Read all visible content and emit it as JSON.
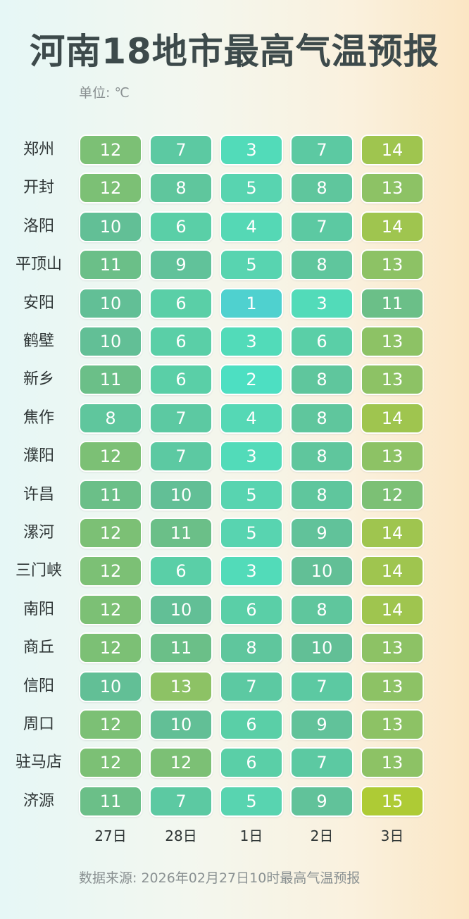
{
  "chart_data": {
    "type": "heatmap",
    "title": "河南18地市最高气温预报",
    "unit_label": "单位: ℃",
    "source": "数据来源: 2026年02月27日10时最高气温预报",
    "columns": [
      "27日",
      "28日",
      "1日",
      "2日",
      "3日"
    ],
    "rows": [
      {
        "city": "郑州",
        "values": [
          12,
          7,
          3,
          7,
          14
        ]
      },
      {
        "city": "开封",
        "values": [
          12,
          8,
          5,
          8,
          13
        ]
      },
      {
        "city": "洛阳",
        "values": [
          10,
          6,
          4,
          7,
          14
        ]
      },
      {
        "city": "平顶山",
        "values": [
          11,
          9,
          5,
          8,
          13
        ]
      },
      {
        "city": "安阳",
        "values": [
          10,
          6,
          1,
          3,
          11
        ]
      },
      {
        "city": "鹤壁",
        "values": [
          10,
          6,
          3,
          6,
          13
        ]
      },
      {
        "city": "新乡",
        "values": [
          11,
          6,
          2,
          8,
          13
        ]
      },
      {
        "city": "焦作",
        "values": [
          8,
          7,
          4,
          8,
          14
        ]
      },
      {
        "city": "濮阳",
        "values": [
          12,
          7,
          3,
          8,
          13
        ]
      },
      {
        "city": "许昌",
        "values": [
          11,
          10,
          5,
          8,
          12
        ]
      },
      {
        "city": "漯河",
        "values": [
          12,
          11,
          5,
          9,
          14
        ]
      },
      {
        "city": "三门峡",
        "values": [
          12,
          6,
          3,
          10,
          14
        ]
      },
      {
        "city": "南阳",
        "values": [
          12,
          10,
          6,
          8,
          14
        ]
      },
      {
        "city": "商丘",
        "values": [
          12,
          11,
          8,
          10,
          13
        ]
      },
      {
        "city": "信阳",
        "values": [
          10,
          13,
          7,
          7,
          13
        ]
      },
      {
        "city": "周口",
        "values": [
          12,
          10,
          6,
          9,
          13
        ]
      },
      {
        "city": "驻马店",
        "values": [
          12,
          12,
          6,
          7,
          13
        ]
      },
      {
        "city": "济源",
        "values": [
          11,
          7,
          5,
          9,
          15
        ]
      }
    ],
    "colors": {
      "1": "#4fd1cf",
      "2": "#4ddfc2",
      "3": "#52dbb9",
      "4": "#55d8b5",
      "5": "#58d4b0",
      "6": "#5acfa7",
      "7": "#5cc9a2",
      "8": "#5fc69d",
      "9": "#61c29a",
      "10": "#62bf96",
      "11": "#6bbf88",
      "12": "#7cc075",
      "13": "#8dc265",
      "14": "#9fc54f",
      "15": "#aecb35"
    }
  }
}
